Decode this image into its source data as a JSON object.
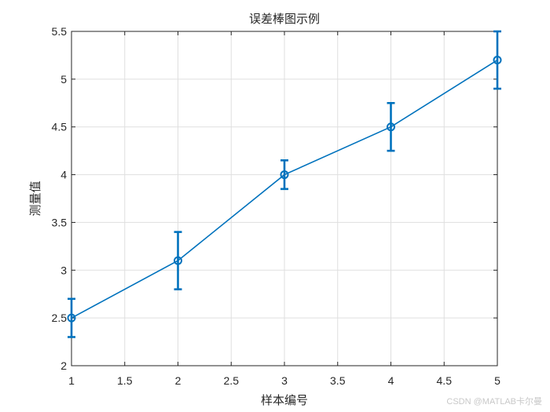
{
  "chart_data": {
    "type": "line",
    "title": "误差棒图示例",
    "xlabel": "样本编号",
    "ylabel": "测量值",
    "xlim": [
      1,
      5
    ],
    "ylim": [
      2,
      5.5
    ],
    "x_ticks": [
      1,
      1.5,
      2,
      2.5,
      3,
      3.5,
      4,
      4.5,
      5
    ],
    "x_tick_labels": [
      "1",
      "1.5",
      "2",
      "2.5",
      "3",
      "3.5",
      "4",
      "4.5",
      "5"
    ],
    "y_ticks": [
      2,
      2.5,
      3,
      3.5,
      4,
      4.5,
      5,
      5.5
    ],
    "y_tick_labels": [
      "2",
      "2.5",
      "3",
      "3.5",
      "4",
      "4.5",
      "5",
      "5.5"
    ],
    "grid": true,
    "series": [
      {
        "x": [
          1,
          2,
          3,
          4,
          5
        ],
        "y": [
          2.5,
          3.1,
          4.0,
          4.5,
          5.2
        ],
        "error": [
          0.2,
          0.3,
          0.15,
          0.25,
          0.3
        ],
        "marker": "circle",
        "color": "#0072BD"
      }
    ]
  },
  "watermark": "CSDN @MATLAB卡尔曼"
}
